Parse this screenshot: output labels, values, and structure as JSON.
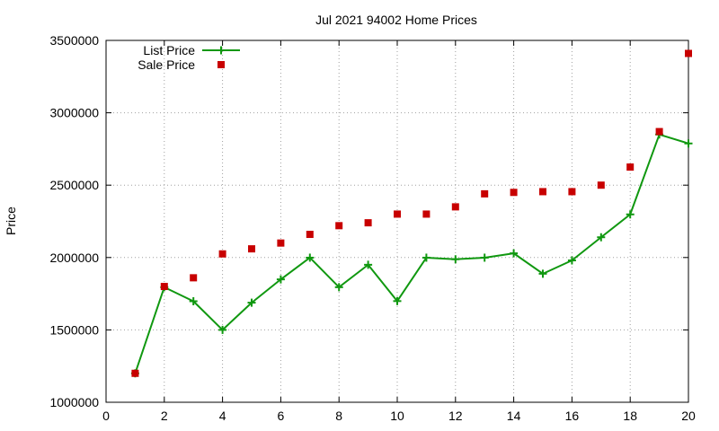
{
  "chart_data": {
    "type": "line",
    "title": "Jul 2021 94002 Home Prices",
    "xlabel": "",
    "ylabel": "Price",
    "xlim": [
      0,
      20
    ],
    "ylim": [
      1000000,
      3500000
    ],
    "xticks": [
      "0",
      "2",
      "4",
      "6",
      "8",
      "10",
      "12",
      "14",
      "16",
      "18",
      "20"
    ],
    "yticks": [
      "1000000",
      "1500000",
      "2000000",
      "2500000",
      "3000000",
      "3500000"
    ],
    "grid": true,
    "legend_position": "top-left",
    "series": [
      {
        "name": "List Price",
        "style": "line-with-plus-markers",
        "color": "#109810",
        "x": [
          1,
          2,
          3,
          4,
          5,
          6,
          7,
          8,
          9,
          10,
          11,
          12,
          13,
          14,
          15,
          16,
          17,
          18,
          19,
          20
        ],
        "y": [
          1200000,
          1795000,
          1698000,
          1500000,
          1688000,
          1849000,
          1999000,
          1795000,
          1950000,
          1699000,
          1999000,
          1988000,
          1999000,
          2029000,
          1888000,
          1980000,
          2140000,
          2298000,
          2850000,
          2788000
        ]
      },
      {
        "name": "Sale Price",
        "style": "square-markers",
        "color": "#c80000",
        "x": [
          1,
          2,
          3,
          4,
          5,
          6,
          7,
          8,
          9,
          10,
          11,
          12,
          13,
          14,
          15,
          16,
          17,
          18,
          19,
          20
        ],
        "y": [
          1200000,
          1800000,
          1860000,
          2025000,
          2060000,
          2100000,
          2160000,
          2220000,
          2240000,
          2300000,
          2300000,
          2350000,
          2440000,
          2450000,
          2455000,
          2455000,
          2500000,
          2625000,
          2870000,
          3410000
        ]
      }
    ]
  }
}
